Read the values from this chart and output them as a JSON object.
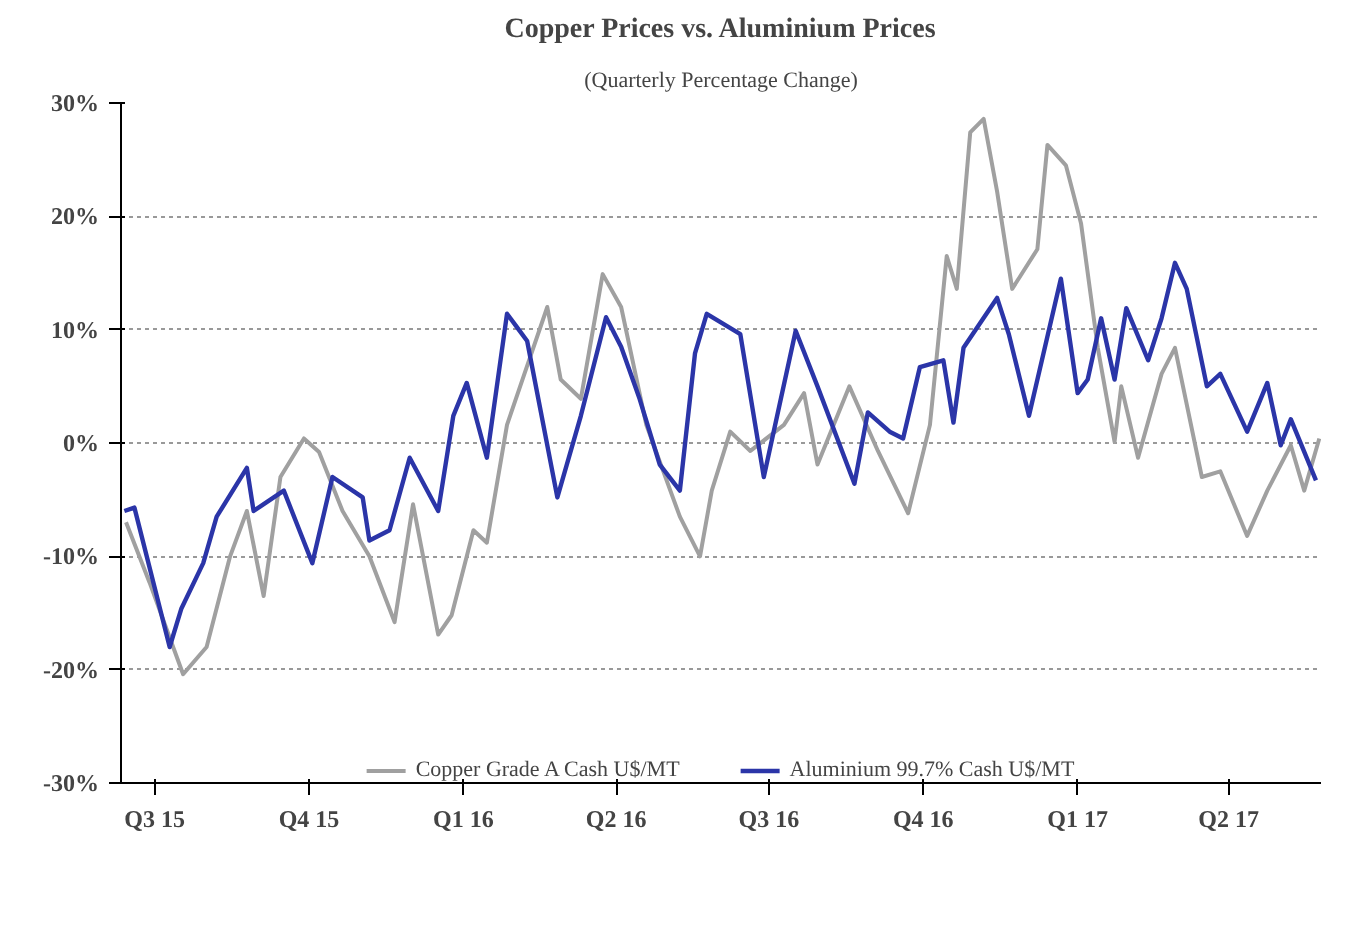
{
  "chart_data": {
    "type": "line",
    "title": "Copper Prices vs. Aluminium Prices",
    "subtitle": "(Quarterly Percentage Change)",
    "xlim": [
      "2015-06-11",
      "2017-05-26"
    ],
    "xticks": [
      {
        "value": "2015-07-01",
        "label": "Q3 15"
      },
      {
        "value": "2015-10-01",
        "label": "Q4 15"
      },
      {
        "value": "2016-01-01",
        "label": "Q1 16"
      },
      {
        "value": "2016-04-01",
        "label": "Q2 16"
      },
      {
        "value": "2016-07-01",
        "label": "Q3 16"
      },
      {
        "value": "2016-10-01",
        "label": "Q4 16"
      },
      {
        "value": "2017-01-01",
        "label": "Q1 17"
      },
      {
        "value": "2017-04-01",
        "label": "Q2 17"
      }
    ],
    "ylim": [
      -30,
      30
    ],
    "yticks": [
      {
        "value": -30,
        "label": "-30%"
      },
      {
        "value": -20,
        "label": "-20%"
      },
      {
        "value": -10,
        "label": "-10%"
      },
      {
        "value": 0,
        "label": "0%"
      },
      {
        "value": 10,
        "label": "10%"
      },
      {
        "value": 20,
        "label": "20%"
      },
      {
        "value": 30,
        "label": "30%"
      }
    ],
    "grid": "y",
    "legend": "bottom",
    "line_style": "solid",
    "series": [
      {
        "name": "Copper Grade A Cash U$/MT",
        "color": "#a0a0a0",
        "x": [
          "2015-06-14",
          "2015-06-28",
          "2015-07-18",
          "2015-08-01",
          "2015-08-15",
          "2015-08-25",
          "2015-09-04",
          "2015-09-14",
          "2015-09-28",
          "2015-10-07",
          "2015-10-21",
          "2015-11-06",
          "2015-11-21",
          "2015-12-02",
          "2015-12-17",
          "2015-12-25",
          "2016-01-07",
          "2016-01-15",
          "2016-01-27",
          "2016-02-08",
          "2016-02-20",
          "2016-02-28",
          "2016-03-11",
          "2016-03-24",
          "2016-04-04",
          "2016-04-19",
          "2016-05-09",
          "2016-05-21",
          "2016-05-28",
          "2016-06-08",
          "2016-06-20",
          "2016-07-10",
          "2016-07-22",
          "2016-07-30",
          "2016-08-18",
          "2016-09-04",
          "2016-09-22",
          "2016-10-05",
          "2016-10-15",
          "2016-10-21",
          "2016-10-29",
          "2016-11-06",
          "2016-11-14",
          "2016-11-23",
          "2016-12-08",
          "2016-12-14",
          "2016-12-25",
          "2017-01-03",
          "2017-01-13",
          "2017-01-23",
          "2017-01-27",
          "2017-02-06",
          "2017-02-20",
          "2017-02-28",
          "2017-03-16",
          "2017-03-27",
          "2017-04-12",
          "2017-04-24",
          "2017-05-08",
          "2017-05-16",
          "2017-05-25"
        ],
        "values": [
          -7,
          -12.3,
          -20.4,
          -18,
          -10,
          -6,
          -13.5,
          -3,
          0.4,
          -0.8,
          -6,
          -10,
          -15.8,
          -5.4,
          -16.9,
          -15.2,
          -7.7,
          -8.8,
          1.6,
          6.8,
          12,
          5.6,
          3.9,
          14.9,
          12,
          1.6,
          -6.5,
          -10,
          -4.2,
          1,
          -0.7,
          1.6,
          4.4,
          -1.9,
          5,
          -0.7,
          -6.2,
          1.6,
          16.5,
          13.6,
          27.4,
          28.6,
          22.2,
          13.6,
          17.1,
          26.3,
          24.5,
          19.4,
          8.4,
          0.1,
          5,
          -1.3,
          6.1,
          8.4,
          -3,
          -2.5,
          -8.2,
          -4.2,
          -0.2,
          -4.2,
          0.4
        ]
      },
      {
        "name": "Aluminium 99.7% Cash U$/MT",
        "color": "#2b35a8",
        "x": [
          "2015-06-13",
          "2015-06-19",
          "2015-07-10",
          "2015-07-17",
          "2015-07-30",
          "2015-08-07",
          "2015-08-25",
          "2015-08-29",
          "2015-09-16",
          "2015-10-03",
          "2015-10-15",
          "2015-11-02",
          "2015-11-06",
          "2015-11-18",
          "2015-11-30",
          "2015-12-17",
          "2015-12-26",
          "2016-01-03",
          "2016-01-15",
          "2016-01-27",
          "2016-02-02",
          "2016-02-08",
          "2016-02-26",
          "2016-03-11",
          "2016-03-26",
          "2016-04-04",
          "2016-04-15",
          "2016-04-27",
          "2016-05-09",
          "2016-05-18",
          "2016-05-25",
          "2016-06-14",
          "2016-06-28",
          "2016-07-17",
          "2016-07-30",
          "2016-08-21",
          "2016-08-29",
          "2016-09-11",
          "2016-09-19",
          "2016-09-29",
          "2016-10-13",
          "2016-10-19",
          "2016-10-25",
          "2016-11-14",
          "2016-11-21",
          "2016-12-03",
          "2016-12-22",
          "2017-01-01",
          "2017-01-07",
          "2017-01-15",
          "2017-01-23",
          "2017-01-30",
          "2017-02-12",
          "2017-02-20",
          "2017-02-28",
          "2017-03-07",
          "2017-03-19",
          "2017-03-27",
          "2017-04-12",
          "2017-04-24",
          "2017-05-02",
          "2017-05-08",
          "2017-05-23"
        ],
        "values": [
          -6,
          -5.7,
          -18,
          -14.6,
          -10.6,
          -6.5,
          -2.2,
          -6,
          -4.2,
          -10.6,
          -3,
          -4.8,
          -8.6,
          -7.7,
          -1.3,
          -6,
          2.4,
          5.3,
          -1.3,
          11.4,
          10.2,
          9,
          -4.8,
          2.4,
          11.1,
          8.5,
          3.9,
          -1.9,
          -4.2,
          7.9,
          11.4,
          9.6,
          -3,
          9.9,
          5,
          -3.6,
          2.7,
          1,
          0.4,
          6.7,
          7.3,
          1.8,
          8.4,
          12.8,
          9.6,
          2.4,
          14.5,
          4.4,
          5.6,
          11,
          5.6,
          11.9,
          7.3,
          11,
          15.9,
          13.6,
          5,
          6.1,
          1,
          5.3,
          -0.2,
          2.1,
          -3.3
        ]
      }
    ]
  }
}
